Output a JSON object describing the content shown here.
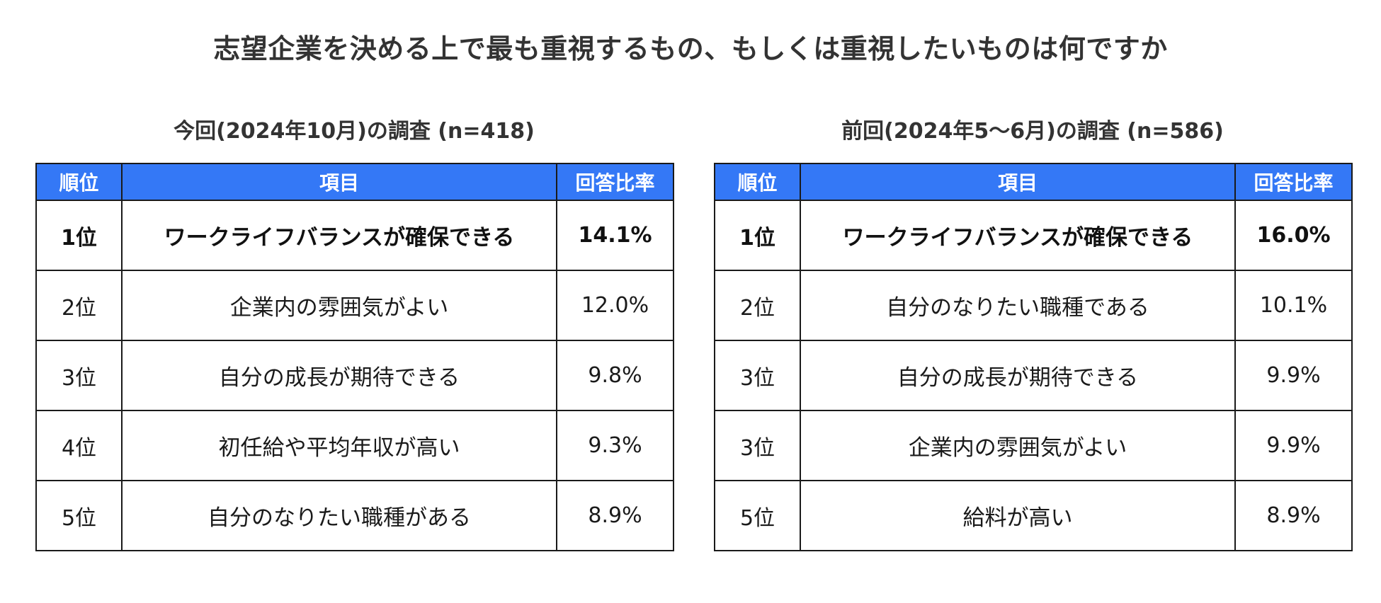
{
  "title": "志望企業を決める上で最も重視するもの、もしくは重視したいものは何ですか",
  "chart_data": [
    {
      "type": "table",
      "caption": "今回(2024年10月)の調査  (n=418)",
      "columns": [
        "順位",
        "項目",
        "回答比率"
      ],
      "rows": [
        {
          "rank": "1位",
          "item": "ワークライフバランスが確保できる",
          "rate": "14.1%",
          "value": 14.1
        },
        {
          "rank": "2位",
          "item": "企業内の雰囲気がよい",
          "rate": "12.0%",
          "value": 12.0
        },
        {
          "rank": "3位",
          "item": "自分の成長が期待できる",
          "rate": "9.8%",
          "value": 9.8
        },
        {
          "rank": "4位",
          "item": "初任給や平均年収が高い",
          "rate": "9.3%",
          "value": 9.3
        },
        {
          "rank": "5位",
          "item": "自分のなりたい職種がある",
          "rate": "8.9%",
          "value": 8.9
        }
      ]
    },
    {
      "type": "table",
      "caption": "前回(2024年5～6月)の調査  (n=586)",
      "columns": [
        "順位",
        "項目",
        "回答比率"
      ],
      "rows": [
        {
          "rank": "1位",
          "item": "ワークライフバランスが確保できる",
          "rate": "16.0%",
          "value": 16.0
        },
        {
          "rank": "2位",
          "item": "自分のなりたい職種である",
          "rate": "10.1%",
          "value": 10.1
        },
        {
          "rank": "3位",
          "item": "自分の成長が期待できる",
          "rate": "9.9%",
          "value": 9.9
        },
        {
          "rank": "3位",
          "item": "企業内の雰囲気がよい",
          "rate": "9.9%",
          "value": 9.9
        },
        {
          "rank": "5位",
          "item": "給料が高い",
          "rate": "8.9%",
          "value": 8.9
        }
      ]
    }
  ],
  "colors": {
    "header_bg": "#3478f6",
    "header_text": "#ffffff",
    "border": "#1a1a1a",
    "text": "#333333"
  }
}
